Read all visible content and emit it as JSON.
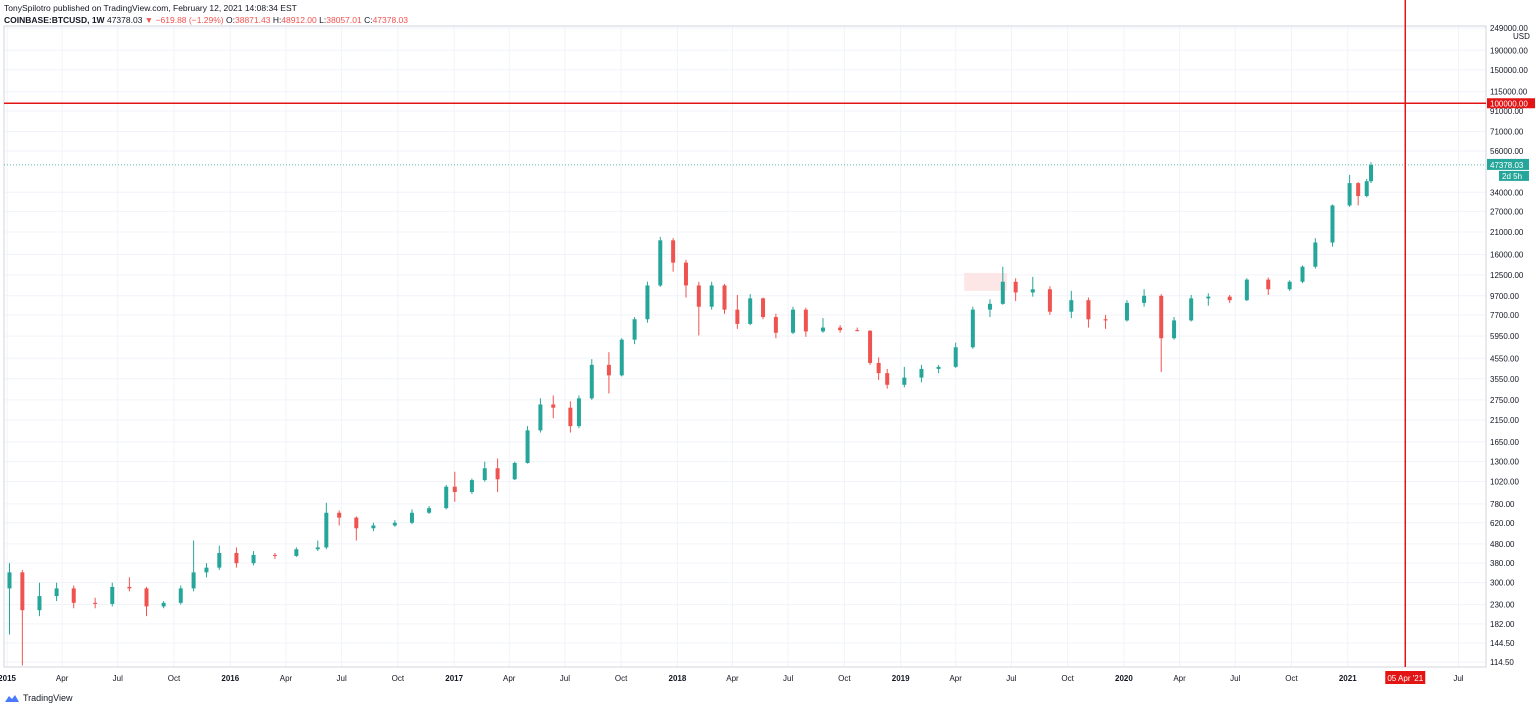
{
  "header": {
    "publisher_line": "TonySpilotro published on TradingView.com, February 12, 2021 14:08:34 EST",
    "symbol": "COINBASE:BTCUSD, 1W",
    "last": "47378.03",
    "change": "▼ −619.88 (−1.29%)",
    "o_label": "O:",
    "o_value": "38871.43",
    "h_label": "H:",
    "h_value": "48912.00",
    "l_label": "L:",
    "l_value": "38057.01",
    "c_label": "C:",
    "c_value": "47378.03"
  },
  "footer": {
    "brand": "TradingView"
  },
  "colors": {
    "up": "#26a69a",
    "down": "#ef5350",
    "marker": "#e31414",
    "grid": "#f0f3fa",
    "border": "#d1d4dc"
  },
  "chart_data": {
    "type": "candlestick",
    "y_scale": "log",
    "ylim": [
      108,
      255000
    ],
    "y_ticks": [
      "249000.00",
      "190000.00",
      "150000.00",
      "115000.00",
      "91000.00",
      "71000.00",
      "56000.00",
      "34000.00",
      "27000.00",
      "21000.00",
      "16000.00",
      "12500.00",
      "9700.00",
      "7700.00",
      "5950.00",
      "4550.00",
      "3550.00",
      "2750.00",
      "2150.00",
      "1650.00",
      "1300.00",
      "1020.00",
      "780.00",
      "620.00",
      "480.00",
      "380.00",
      "300.00",
      "230.00",
      "182.00",
      "144.50",
      "114.50"
    ],
    "y_unit": "USD",
    "x_ticks": [
      {
        "label": "2015",
        "date": "2015-01-01",
        "major": true
      },
      {
        "label": "Apr",
        "date": "2015-04-01"
      },
      {
        "label": "Jul",
        "date": "2015-07-01"
      },
      {
        "label": "Oct",
        "date": "2015-10-01"
      },
      {
        "label": "2016",
        "date": "2016-01-01",
        "major": true
      },
      {
        "label": "Apr",
        "date": "2016-04-01"
      },
      {
        "label": "Jul",
        "date": "2016-07-01"
      },
      {
        "label": "Oct",
        "date": "2016-10-01"
      },
      {
        "label": "2017",
        "date": "2017-01-01",
        "major": true
      },
      {
        "label": "Apr",
        "date": "2017-04-01"
      },
      {
        "label": "Jul",
        "date": "2017-07-01"
      },
      {
        "label": "Oct",
        "date": "2017-10-01"
      },
      {
        "label": "2018",
        "date": "2018-01-01",
        "major": true
      },
      {
        "label": "Apr",
        "date": "2018-04-01"
      },
      {
        "label": "Jul",
        "date": "2018-07-01"
      },
      {
        "label": "Oct",
        "date": "2018-10-01"
      },
      {
        "label": "2019",
        "date": "2019-01-01",
        "major": true
      },
      {
        "label": "Apr",
        "date": "2019-04-01"
      },
      {
        "label": "Jul",
        "date": "2019-07-01"
      },
      {
        "label": "Oct",
        "date": "2019-10-01"
      },
      {
        "label": "2020",
        "date": "2020-01-01",
        "major": true
      },
      {
        "label": "Apr",
        "date": "2020-04-01"
      },
      {
        "label": "Jul",
        "date": "2020-07-01"
      },
      {
        "label": "Oct",
        "date": "2020-10-01"
      },
      {
        "label": "2021",
        "date": "2021-01-01",
        "major": true
      },
      {
        "label": "Jul",
        "date": "2021-07-01"
      }
    ],
    "xlim": [
      "2014-12-27",
      "2021-08-15"
    ],
    "horizontal_line": {
      "value": 100000,
      "label": "100000.00"
    },
    "vertical_line": {
      "date": "2021-04-05",
      "label": "05 Apr '21"
    },
    "last_price": {
      "value": 47378.03,
      "label": "47378.03",
      "countdown": "2d 5h"
    },
    "highlight_zone": {
      "from": "2019-04-15",
      "to": "2019-06-24",
      "low": 10300,
      "high": 12800
    },
    "series": [
      {
        "date": "2015-01-05",
        "o": 280,
        "h": 380,
        "l": 160,
        "c": 340
      },
      {
        "date": "2015-01-26",
        "o": 340,
        "h": 350,
        "l": 110,
        "c": 215
      },
      {
        "date": "2015-02-23",
        "o": 215,
        "h": 300,
        "l": 200,
        "c": 255
      },
      {
        "date": "2015-03-23",
        "o": 255,
        "h": 300,
        "l": 240,
        "c": 280
      },
      {
        "date": "2015-04-20",
        "o": 280,
        "h": 290,
        "l": 220,
        "c": 235
      },
      {
        "date": "2015-05-25",
        "o": 235,
        "h": 250,
        "l": 220,
        "c": 232
      },
      {
        "date": "2015-06-22",
        "o": 232,
        "h": 300,
        "l": 225,
        "c": 285
      },
      {
        "date": "2015-07-20",
        "o": 285,
        "h": 320,
        "l": 270,
        "c": 280
      },
      {
        "date": "2015-08-17",
        "o": 280,
        "h": 285,
        "l": 200,
        "c": 225
      },
      {
        "date": "2015-09-14",
        "o": 225,
        "h": 240,
        "l": 220,
        "c": 235
      },
      {
        "date": "2015-10-12",
        "o": 235,
        "h": 290,
        "l": 230,
        "c": 280
      },
      {
        "date": "2015-11-02",
        "o": 280,
        "h": 500,
        "l": 270,
        "c": 340
      },
      {
        "date": "2015-11-23",
        "o": 340,
        "h": 380,
        "l": 320,
        "c": 360
      },
      {
        "date": "2015-12-14",
        "o": 360,
        "h": 470,
        "l": 350,
        "c": 430
      },
      {
        "date": "2016-01-11",
        "o": 430,
        "h": 460,
        "l": 360,
        "c": 380
      },
      {
        "date": "2016-02-08",
        "o": 380,
        "h": 440,
        "l": 370,
        "c": 420
      },
      {
        "date": "2016-03-14",
        "o": 420,
        "h": 430,
        "l": 400,
        "c": 415
      },
      {
        "date": "2016-04-18",
        "o": 415,
        "h": 460,
        "l": 410,
        "c": 450
      },
      {
        "date": "2016-05-23",
        "o": 450,
        "h": 500,
        "l": 440,
        "c": 460
      },
      {
        "date": "2016-06-06",
        "o": 460,
        "h": 790,
        "l": 450,
        "c": 700
      },
      {
        "date": "2016-06-27",
        "o": 700,
        "h": 720,
        "l": 600,
        "c": 660
      },
      {
        "date": "2016-07-25",
        "o": 660,
        "h": 670,
        "l": 500,
        "c": 580
      },
      {
        "date": "2016-08-22",
        "o": 580,
        "h": 620,
        "l": 560,
        "c": 600
      },
      {
        "date": "2016-09-26",
        "o": 600,
        "h": 640,
        "l": 590,
        "c": 620
      },
      {
        "date": "2016-10-24",
        "o": 620,
        "h": 730,
        "l": 610,
        "c": 700
      },
      {
        "date": "2016-11-21",
        "o": 700,
        "h": 760,
        "l": 690,
        "c": 740
      },
      {
        "date": "2016-12-19",
        "o": 740,
        "h": 980,
        "l": 730,
        "c": 960
      },
      {
        "date": "2017-01-02",
        "o": 960,
        "h": 1150,
        "l": 800,
        "c": 900
      },
      {
        "date": "2017-01-30",
        "o": 900,
        "h": 1060,
        "l": 880,
        "c": 1040
      },
      {
        "date": "2017-02-20",
        "o": 1040,
        "h": 1300,
        "l": 1020,
        "c": 1200
      },
      {
        "date": "2017-03-13",
        "o": 1200,
        "h": 1350,
        "l": 900,
        "c": 1050
      },
      {
        "date": "2017-04-10",
        "o": 1050,
        "h": 1300,
        "l": 1040,
        "c": 1280
      },
      {
        "date": "2017-05-01",
        "o": 1280,
        "h": 2000,
        "l": 1270,
        "c": 1900
      },
      {
        "date": "2017-05-22",
        "o": 1900,
        "h": 2800,
        "l": 1850,
        "c": 2600
      },
      {
        "date": "2017-06-12",
        "o": 2600,
        "h": 2900,
        "l": 2200,
        "c": 2500
      },
      {
        "date": "2017-07-10",
        "o": 2500,
        "h": 2700,
        "l": 1850,
        "c": 2000
      },
      {
        "date": "2017-07-24",
        "o": 2000,
        "h": 2900,
        "l": 1950,
        "c": 2800
      },
      {
        "date": "2017-08-14",
        "o": 2800,
        "h": 4500,
        "l": 2750,
        "c": 4200
      },
      {
        "date": "2017-09-11",
        "o": 4200,
        "h": 4900,
        "l": 2970,
        "c": 3700
      },
      {
        "date": "2017-10-02",
        "o": 3700,
        "h": 5800,
        "l": 3650,
        "c": 5700
      },
      {
        "date": "2017-10-23",
        "o": 5700,
        "h": 7500,
        "l": 5400,
        "c": 7300
      },
      {
        "date": "2017-11-13",
        "o": 7300,
        "h": 11500,
        "l": 7000,
        "c": 11000
      },
      {
        "date": "2017-12-04",
        "o": 11000,
        "h": 19800,
        "l": 10800,
        "c": 19000
      },
      {
        "date": "2017-12-25",
        "o": 19000,
        "h": 19500,
        "l": 13000,
        "c": 14500
      },
      {
        "date": "2018-01-15",
        "o": 14500,
        "h": 15000,
        "l": 9500,
        "c": 11000
      },
      {
        "date": "2018-02-05",
        "o": 11000,
        "h": 11500,
        "l": 6000,
        "c": 8500
      },
      {
        "date": "2018-02-26",
        "o": 8500,
        "h": 11500,
        "l": 8200,
        "c": 11000
      },
      {
        "date": "2018-03-19",
        "o": 11000,
        "h": 11200,
        "l": 7800,
        "c": 8200
      },
      {
        "date": "2018-04-09",
        "o": 8200,
        "h": 9800,
        "l": 6500,
        "c": 6900
      },
      {
        "date": "2018-04-30",
        "o": 6900,
        "h": 9900,
        "l": 6800,
        "c": 9400
      },
      {
        "date": "2018-05-21",
        "o": 9400,
        "h": 9500,
        "l": 7300,
        "c": 7500
      },
      {
        "date": "2018-06-11",
        "o": 7500,
        "h": 7800,
        "l": 5800,
        "c": 6200
      },
      {
        "date": "2018-07-09",
        "o": 6200,
        "h": 8500,
        "l": 6100,
        "c": 8200
      },
      {
        "date": "2018-07-30",
        "o": 8200,
        "h": 8400,
        "l": 5900,
        "c": 6300
      },
      {
        "date": "2018-08-27",
        "o": 6300,
        "h": 7400,
        "l": 6200,
        "c": 6600
      },
      {
        "date": "2018-09-24",
        "o": 6600,
        "h": 6800,
        "l": 6200,
        "c": 6400
      },
      {
        "date": "2018-10-22",
        "o": 6400,
        "h": 6600,
        "l": 6300,
        "c": 6350
      },
      {
        "date": "2018-11-12",
        "o": 6350,
        "h": 6400,
        "l": 4200,
        "c": 4300
      },
      {
        "date": "2018-11-26",
        "o": 4300,
        "h": 4600,
        "l": 3500,
        "c": 3800
      },
      {
        "date": "2018-12-10",
        "o": 3800,
        "h": 4000,
        "l": 3150,
        "c": 3300
      },
      {
        "date": "2019-01-07",
        "o": 3300,
        "h": 4100,
        "l": 3200,
        "c": 3600
      },
      {
        "date": "2019-02-04",
        "o": 3600,
        "h": 4200,
        "l": 3400,
        "c": 4000
      },
      {
        "date": "2019-03-04",
        "o": 4000,
        "h": 4200,
        "l": 3800,
        "c": 4100
      },
      {
        "date": "2019-04-01",
        "o": 4100,
        "h": 5500,
        "l": 4050,
        "c": 5200
      },
      {
        "date": "2019-04-29",
        "o": 5200,
        "h": 8500,
        "l": 5100,
        "c": 8200
      },
      {
        "date": "2019-05-27",
        "o": 8200,
        "h": 9300,
        "l": 7500,
        "c": 8800
      },
      {
        "date": "2019-06-17",
        "o": 8800,
        "h": 13800,
        "l": 8700,
        "c": 11500
      },
      {
        "date": "2019-07-08",
        "o": 11500,
        "h": 12000,
        "l": 9100,
        "c": 10100
      },
      {
        "date": "2019-08-05",
        "o": 10100,
        "h": 12200,
        "l": 9600,
        "c": 10500
      },
      {
        "date": "2019-09-02",
        "o": 10500,
        "h": 10900,
        "l": 7700,
        "c": 8000
      },
      {
        "date": "2019-10-07",
        "o": 8000,
        "h": 10300,
        "l": 7400,
        "c": 9200
      },
      {
        "date": "2019-11-04",
        "o": 9200,
        "h": 9500,
        "l": 6600,
        "c": 7300
      },
      {
        "date": "2019-12-02",
        "o": 7300,
        "h": 7700,
        "l": 6500,
        "c": 7200
      },
      {
        "date": "2020-01-06",
        "o": 7200,
        "h": 9200,
        "l": 7100,
        "c": 8900
      },
      {
        "date": "2020-02-03",
        "o": 8900,
        "h": 10500,
        "l": 8500,
        "c": 9700
      },
      {
        "date": "2020-03-02",
        "o": 9700,
        "h": 9900,
        "l": 3850,
        "c": 5800
      },
      {
        "date": "2020-03-23",
        "o": 5800,
        "h": 7500,
        "l": 5700,
        "c": 7200
      },
      {
        "date": "2020-04-20",
        "o": 7200,
        "h": 9800,
        "l": 7100,
        "c": 9400
      },
      {
        "date": "2020-05-18",
        "o": 9400,
        "h": 10000,
        "l": 8600,
        "c": 9600
      },
      {
        "date": "2020-06-22",
        "o": 9600,
        "h": 9800,
        "l": 8900,
        "c": 9200
      },
      {
        "date": "2020-07-20",
        "o": 9200,
        "h": 12000,
        "l": 9100,
        "c": 11800
      },
      {
        "date": "2020-08-24",
        "o": 11800,
        "h": 12100,
        "l": 9800,
        "c": 10500
      },
      {
        "date": "2020-09-28",
        "o": 10500,
        "h": 11700,
        "l": 10300,
        "c": 11500
      },
      {
        "date": "2020-10-19",
        "o": 11500,
        "h": 14000,
        "l": 11300,
        "c": 13800
      },
      {
        "date": "2020-11-09",
        "o": 13800,
        "h": 19500,
        "l": 13500,
        "c": 18500
      },
      {
        "date": "2020-12-07",
        "o": 18500,
        "h": 29300,
        "l": 17600,
        "c": 29000
      },
      {
        "date": "2021-01-04",
        "o": 29000,
        "h": 42000,
        "l": 28500,
        "c": 38000
      },
      {
        "date": "2021-01-18",
        "o": 38000,
        "h": 38500,
        "l": 29000,
        "c": 32500
      },
      {
        "date": "2021-02-01",
        "o": 32500,
        "h": 40000,
        "l": 32000,
        "c": 38900
      },
      {
        "date": "2021-02-08",
        "o": 38871.43,
        "h": 48912.0,
        "l": 38057.01,
        "c": 47378.03
      }
    ]
  }
}
